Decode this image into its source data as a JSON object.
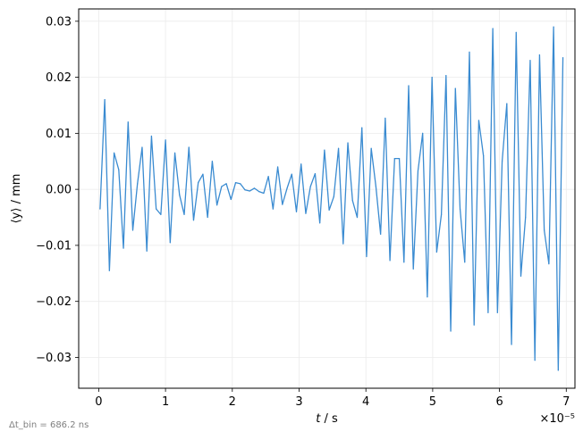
{
  "chart_data": {
    "type": "line",
    "xlabel": "t / s",
    "ylabel": "⟨y⟩ / mm",
    "x_multiplier_label": "×10⁻⁵",
    "footnote": "Δt_bin = 686.2 ns",
    "xlim": [
      -0.3,
      7.13
    ],
    "ylim": [
      -0.0355,
      0.0322
    ],
    "xticks": [
      0,
      1,
      2,
      3,
      4,
      5,
      6,
      7
    ],
    "yticks": [
      -0.03,
      -0.02,
      -0.01,
      0.0,
      0.01,
      0.02,
      0.03
    ],
    "ytick_labels": [
      "−0.03",
      "−0.02",
      "−0.01",
      "0.00",
      "0.01",
      "0.02",
      "0.03"
    ],
    "grid": true,
    "line_color": "#3a8bd1",
    "series": [
      {
        "values": [
          [
            0.02,
            -0.0035
          ],
          [
            0.09,
            0.016
          ],
          [
            0.16,
            -0.0145
          ],
          [
            0.23,
            0.0065
          ],
          [
            0.3,
            0.0035
          ],
          [
            0.37,
            -0.0105
          ],
          [
            0.44,
            0.012
          ],
          [
            0.51,
            -0.0073
          ],
          [
            0.58,
            0.001
          ],
          [
            0.65,
            0.0075
          ],
          [
            0.72,
            -0.011
          ],
          [
            0.79,
            0.0095
          ],
          [
            0.86,
            -0.0035
          ],
          [
            0.93,
            -0.0045
          ],
          [
            1.0,
            0.0088
          ],
          [
            1.07,
            -0.0095
          ],
          [
            1.14,
            0.0065
          ],
          [
            1.21,
            -0.001
          ],
          [
            1.28,
            -0.0045
          ],
          [
            1.35,
            0.0075
          ],
          [
            1.42,
            -0.0055
          ],
          [
            1.49,
            0.0012
          ],
          [
            1.56,
            0.0027
          ],
          [
            1.63,
            -0.005
          ],
          [
            1.7,
            0.005
          ],
          [
            1.77,
            -0.0028
          ],
          [
            1.84,
            0.0005
          ],
          [
            1.91,
            0.001
          ],
          [
            1.98,
            -0.0018
          ],
          [
            2.05,
            0.0012
          ],
          [
            2.12,
            0.001
          ],
          [
            2.19,
            -0.0001
          ],
          [
            2.26,
            -0.0003
          ],
          [
            2.33,
            0.0002
          ],
          [
            2.4,
            -0.0004
          ],
          [
            2.47,
            -0.0007
          ],
          [
            2.54,
            0.0023
          ],
          [
            2.61,
            -0.0035
          ],
          [
            2.68,
            0.004
          ],
          [
            2.75,
            -0.0027
          ],
          [
            2.82,
            0.0002
          ],
          [
            2.89,
            0.0027
          ],
          [
            2.96,
            -0.004
          ],
          [
            3.03,
            0.0045
          ],
          [
            3.1,
            -0.0043
          ],
          [
            3.17,
            0.0005
          ],
          [
            3.24,
            0.0028
          ],
          [
            3.31,
            -0.006
          ],
          [
            3.38,
            0.007
          ],
          [
            3.45,
            -0.0037
          ],
          [
            3.52,
            -0.0013
          ],
          [
            3.59,
            0.0073
          ],
          [
            3.66,
            -0.0097
          ],
          [
            3.73,
            0.0083
          ],
          [
            3.8,
            -0.002
          ],
          [
            3.87,
            -0.005
          ],
          [
            3.94,
            0.011
          ],
          [
            4.01,
            -0.012
          ],
          [
            4.08,
            0.0073
          ],
          [
            4.15,
            0.0005
          ],
          [
            4.22,
            -0.008
          ],
          [
            4.29,
            0.0127
          ],
          [
            4.36,
            -0.0127
          ],
          [
            4.43,
            0.0055
          ],
          [
            4.5,
            0.0055
          ],
          [
            4.57,
            -0.013
          ],
          [
            4.64,
            0.0185
          ],
          [
            4.71,
            -0.0142
          ],
          [
            4.78,
            0.0033
          ],
          [
            4.85,
            0.01
          ],
          [
            4.92,
            -0.0192
          ],
          [
            4.99,
            0.02
          ],
          [
            5.06,
            -0.0112
          ],
          [
            5.13,
            -0.0045
          ],
          [
            5.2,
            0.0203
          ],
          [
            5.27,
            -0.0253
          ],
          [
            5.34,
            0.018
          ],
          [
            5.41,
            -0.0035
          ],
          [
            5.48,
            -0.013
          ],
          [
            5.55,
            0.0245
          ],
          [
            5.62,
            -0.0242
          ],
          [
            5.69,
            0.0123
          ],
          [
            5.76,
            0.006
          ],
          [
            5.83,
            -0.022
          ],
          [
            5.9,
            0.0287
          ],
          [
            5.97,
            -0.022
          ],
          [
            6.04,
            0.005
          ],
          [
            6.11,
            0.0153
          ],
          [
            6.18,
            -0.0277
          ],
          [
            6.25,
            0.028
          ],
          [
            6.32,
            -0.0155
          ],
          [
            6.39,
            -0.005
          ],
          [
            6.46,
            0.023
          ],
          [
            6.53,
            -0.0305
          ],
          [
            6.6,
            0.024
          ],
          [
            6.67,
            -0.0073
          ],
          [
            6.74,
            -0.0133
          ],
          [
            6.81,
            0.029
          ],
          [
            6.88,
            -0.0323
          ],
          [
            6.95,
            0.0235
          ]
        ]
      }
    ]
  }
}
